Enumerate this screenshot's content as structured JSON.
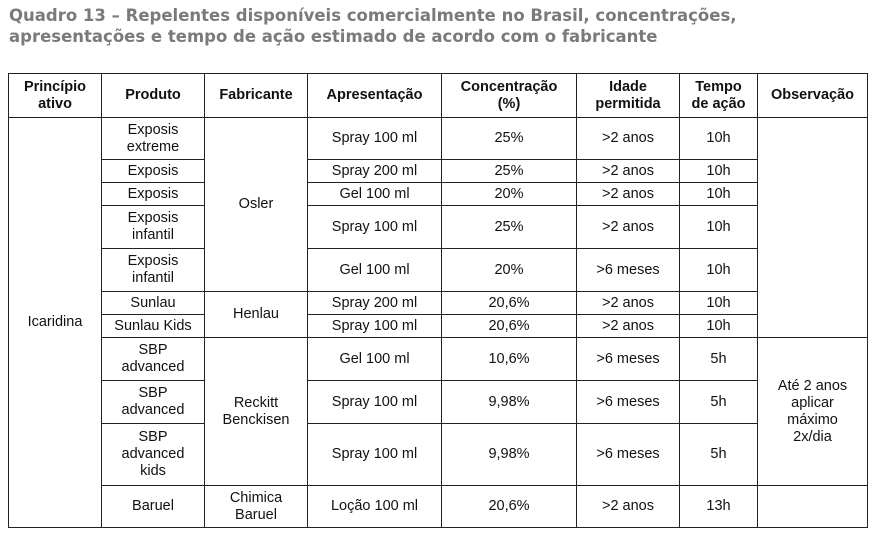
{
  "title": {
    "line1": "Quadro 13 – Repelentes disponíveis comercialmente no Brasil, concentrações,",
    "line2": "apresentações e tempo de ação estimado de acordo com o fabricante"
  },
  "headers": {
    "principio_l1": "Princípio",
    "principio_l2": "ativo",
    "produto": "Produto",
    "fabricante": "Fabricante",
    "apresentacao": "Apresentação",
    "concentracao_l1": "Concentração",
    "concentracao_l2": "(%)",
    "idade_l1": "Idade",
    "idade_l2": "permitida",
    "tempo_l1": "Tempo",
    "tempo_l2": "de ação",
    "observacao": "Observação"
  },
  "principio": "Icaridina",
  "fabricantes": {
    "osler": "Osler",
    "henlau": "Henlau",
    "reckitt_l1": "Reckitt",
    "reckitt_l2": "Benckisen",
    "chimica_l1": "Chimica",
    "chimica_l2": "Baruel"
  },
  "observacao_sbp": {
    "l1": "Até 2 anos",
    "l2": "aplicar",
    "l3": "máximo",
    "l4": "2x/dia"
  },
  "rows": [
    {
      "produto_l1": "Exposis",
      "produto_l2": "extreme",
      "apresentacao": "Spray 100 ml",
      "concentracao": "25%",
      "idade": ">2 anos",
      "tempo": "10h"
    },
    {
      "produto_l1": "Exposis",
      "apresentacao": "Spray 200 ml",
      "concentracao": "25%",
      "idade": ">2 anos",
      "tempo": "10h"
    },
    {
      "produto_l1": "Exposis",
      "apresentacao": "Gel 100 ml",
      "concentracao": "20%",
      "idade": ">2 anos",
      "tempo": "10h"
    },
    {
      "produto_l1": "Exposis",
      "produto_l2": "infantil",
      "apresentacao": "Spray 100 ml",
      "concentracao": "25%",
      "idade": ">2 anos",
      "tempo": "10h"
    },
    {
      "produto_l1": "Exposis",
      "produto_l2": "infantil",
      "apresentacao": "Gel 100 ml",
      "concentracao": "20%",
      "idade": ">6 meses",
      "tempo": "10h"
    },
    {
      "produto_l1": "Sunlau",
      "apresentacao": "Spray 200 ml",
      "concentracao": "20,6%",
      "idade": ">2 anos",
      "tempo": "10h"
    },
    {
      "produto_l1": "Sunlau Kids",
      "apresentacao": "Spray 100 ml",
      "concentracao": "20,6%",
      "idade": ">2 anos",
      "tempo": "10h"
    },
    {
      "produto_l1": "SBP",
      "produto_l2": "advanced",
      "apresentacao": "Gel 100 ml",
      "concentracao": "10,6%",
      "idade": ">6 meses",
      "tempo": "5h"
    },
    {
      "produto_l1": "SBP",
      "produto_l2": "advanced",
      "apresentacao": "Spray 100 ml",
      "concentracao": "9,98%",
      "idade": ">6 meses",
      "tempo": "5h"
    },
    {
      "produto_l1": "SBP",
      "produto_l2": "advanced",
      "produto_l3": "kids",
      "apresentacao": "Spray 100 ml",
      "concentracao": "9,98%",
      "idade": ">6 meses",
      "tempo": "5h"
    },
    {
      "produto_l1": "Baruel",
      "apresentacao": "Loção 100 ml",
      "concentracao": "20,6%",
      "idade": ">2 anos",
      "tempo": "13h"
    }
  ]
}
